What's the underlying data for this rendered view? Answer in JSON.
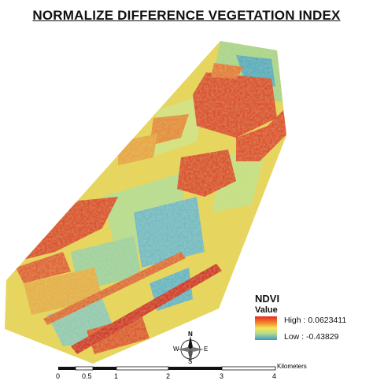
{
  "title": "NORMALIZE DIFFERENCE VEGETATION INDEX",
  "legend": {
    "layer_name": "NDVI",
    "field": "Value",
    "high_label": "High : 0.0623411",
    "low_label": "Low : -0.43829",
    "ramp_colors": [
      "#e62a1e",
      "#f28a2c",
      "#f5e65a",
      "#b5dc8c",
      "#3a9ac8"
    ]
  },
  "north_arrow": {
    "n": "N",
    "s": "S",
    "e": "E",
    "w": "W"
  },
  "scale_bar": {
    "unit": "Kilometers",
    "ticks": [
      "0",
      "0.5",
      "1",
      "2",
      "3",
      "4"
    ]
  }
}
